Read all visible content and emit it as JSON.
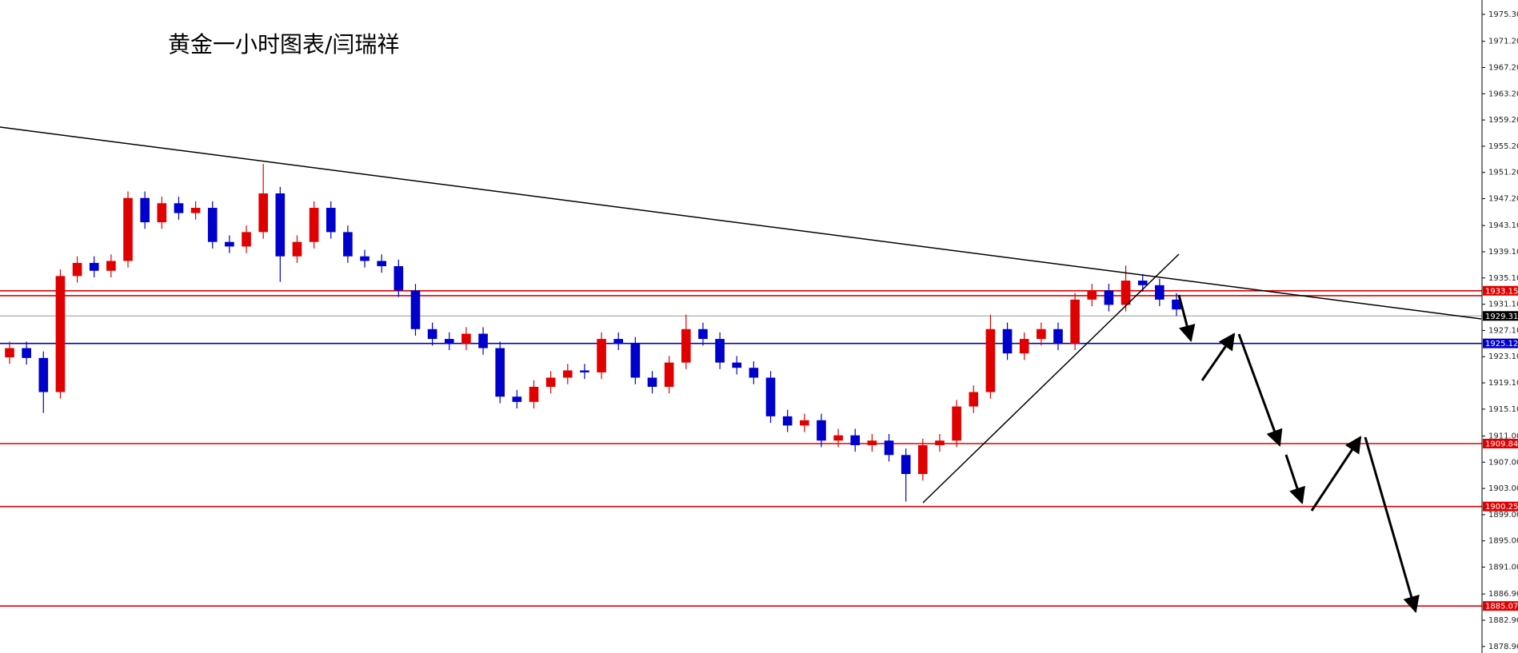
{
  "chart_data": {
    "type": "candlestick",
    "title": "黄金一小时图表/闫瑞祥",
    "up_color": "#e00000",
    "down_color": "#0000cc",
    "ylim": [
      1877.9,
      1977.5
    ],
    "yticks": [
      {
        "value": 1975.3,
        "label": "1975.30"
      },
      {
        "value": 1971.2,
        "label": "1971.20"
      },
      {
        "value": 1967.2,
        "label": "1967.20"
      },
      {
        "value": 1963.2,
        "label": "1963.20"
      },
      {
        "value": 1959.2,
        "label": "1959.20"
      },
      {
        "value": 1955.2,
        "label": "1955.20"
      },
      {
        "value": 1951.2,
        "label": "1951.20"
      },
      {
        "value": 1947.2,
        "label": "1947.20"
      },
      {
        "value": 1943.1,
        "label": "1943.10"
      },
      {
        "value": 1939.1,
        "label": "1939.10"
      },
      {
        "value": 1935.1,
        "label": "1935.10"
      },
      {
        "value": 1931.1,
        "label": "1931.10"
      },
      {
        "value": 1927.1,
        "label": "1927.10"
      },
      {
        "value": 1923.1,
        "label": "1923.10"
      },
      {
        "value": 1919.1,
        "label": "1919.10"
      },
      {
        "value": 1915.1,
        "label": "1915.10"
      },
      {
        "value": 1911,
        "label": "1911.00"
      },
      {
        "value": 1907,
        "label": "1907.00"
      },
      {
        "value": 1903,
        "label": "1903.00"
      },
      {
        "value": 1899,
        "label": "1899.00"
      },
      {
        "value": 1895,
        "label": "1895.00"
      },
      {
        "value": 1891,
        "label": "1891.00"
      },
      {
        "value": 1886.9,
        "label": "1886.90"
      },
      {
        "value": 1882.9,
        "label": "1882.90"
      },
      {
        "value": 1878.9,
        "label": "1878.90"
      }
    ],
    "levels": [
      {
        "value": 1933.15,
        "color": "#e00000"
      },
      {
        "value": 1932.4,
        "color": "#e00000"
      },
      {
        "value": 1929.31,
        "color": "#999999"
      },
      {
        "value": 1925.12,
        "color": "#0000cc"
      },
      {
        "value": 1909.84,
        "color": "#e00000"
      },
      {
        "value": 1900.25,
        "color": "#e00000"
      },
      {
        "value": 1885.07,
        "color": "#e00000"
      }
    ],
    "open": [
      1923.0,
      1924.4,
      1922.9,
      1917.7,
      1935.4,
      1937.4,
      1936.2,
      1937.7,
      1947.3,
      1943.6,
      1946.5,
      1945.0,
      1945.8,
      1940.6,
      1939.9,
      1942.1,
      1948.0,
      1938.4,
      1940.6,
      1945.8,
      1942.1,
      1938.4,
      1937.7,
      1936.9,
      1933.2,
      1927.3,
      1925.8,
      1925.1,
      1926.6,
      1924.4,
      1917.0,
      1916.2,
      1918.5,
      1919.9,
      1921.0,
      1920.7,
      1925.8,
      1925.1,
      1919.9,
      1918.5,
      1922.2,
      1927.3,
      1925.8,
      1922.2,
      1921.4,
      1919.9,
      1914.0,
      1912.6,
      1913.4,
      1910.3,
      1911.1,
      1909.6,
      1910.3,
      1908.1,
      1905.2,
      1909.6,
      1910.3,
      1915.5,
      1917.7,
      1927.3,
      1923.6,
      1925.8,
      1927.3,
      1925.1,
      1931.8,
      1933.2,
      1931.0,
      1934.7,
      1934.0,
      1931.8
    ],
    "high": [
      1925.4,
      1925.4,
      1923.9,
      1936.4,
      1938.4,
      1938.4,
      1938.7,
      1948.3,
      1948.3,
      1947.5,
      1947.5,
      1946.8,
      1946.8,
      1941.6,
      1943.1,
      1952.5,
      1949.0,
      1941.6,
      1946.8,
      1946.8,
      1943.1,
      1939.4,
      1938.7,
      1937.9,
      1934.2,
      1928.3,
      1926.8,
      1927.6,
      1927.6,
      1925.4,
      1918.0,
      1919.5,
      1920.9,
      1922.0,
      1922.0,
      1926.8,
      1926.8,
      1926.1,
      1920.9,
      1923.2,
      1929.5,
      1928.3,
      1926.8,
      1923.2,
      1922.4,
      1920.9,
      1915.0,
      1914.4,
      1914.4,
      1912.1,
      1912.1,
      1911.3,
      1911.3,
      1909.1,
      1910.6,
      1911.3,
      1916.5,
      1918.7,
      1929.5,
      1928.3,
      1926.8,
      1928.3,
      1928.3,
      1932.8,
      1934.2,
      1934.2,
      1937.0,
      1935.7,
      1935.0,
      1932.8
    ],
    "low": [
      1922.0,
      1921.9,
      1914.5,
      1916.7,
      1934.4,
      1935.2,
      1935.2,
      1936.7,
      1942.6,
      1942.6,
      1944.0,
      1944.0,
      1939.6,
      1938.9,
      1938.9,
      1941.1,
      1934.5,
      1937.4,
      1939.6,
      1941.1,
      1937.4,
      1936.7,
      1935.9,
      1932.2,
      1926.3,
      1924.8,
      1924.1,
      1924.1,
      1923.4,
      1916.0,
      1915.2,
      1915.2,
      1917.5,
      1918.9,
      1919.7,
      1919.7,
      1924.1,
      1918.9,
      1917.5,
      1917.5,
      1921.2,
      1924.8,
      1921.2,
      1920.4,
      1918.9,
      1913.0,
      1911.6,
      1911.6,
      1909.3,
      1909.3,
      1908.6,
      1908.6,
      1907.1,
      1901.0,
      1904.2,
      1908.6,
      1909.3,
      1914.5,
      1916.7,
      1922.6,
      1922.6,
      1924.8,
      1924.1,
      1924.1,
      1930.8,
      1930.0,
      1930.0,
      1933.0,
      1930.8,
      1929.3
    ],
    "close": [
      1924.4,
      1922.9,
      1917.7,
      1935.4,
      1937.4,
      1936.2,
      1937.7,
      1947.3,
      1943.6,
      1946.5,
      1945.0,
      1945.8,
      1940.6,
      1939.9,
      1942.1,
      1948.0,
      1938.4,
      1940.6,
      1945.8,
      1942.1,
      1938.4,
      1937.7,
      1936.9,
      1933.2,
      1927.3,
      1925.8,
      1925.1,
      1926.6,
      1924.4,
      1917.0,
      1916.2,
      1918.5,
      1919.9,
      1921.0,
      1920.7,
      1925.8,
      1925.1,
      1919.9,
      1918.5,
      1922.2,
      1927.3,
      1925.8,
      1922.2,
      1921.4,
      1919.9,
      1914.0,
      1912.6,
      1913.4,
      1910.3,
      1911.1,
      1909.6,
      1910.3,
      1908.1,
      1905.2,
      1909.6,
      1910.3,
      1915.5,
      1917.7,
      1927.3,
      1923.6,
      1925.8,
      1927.3,
      1925.1,
      1931.8,
      1933.2,
      1931.0,
      1934.7,
      1934.0,
      1931.8,
      1930.3
    ]
  }
}
